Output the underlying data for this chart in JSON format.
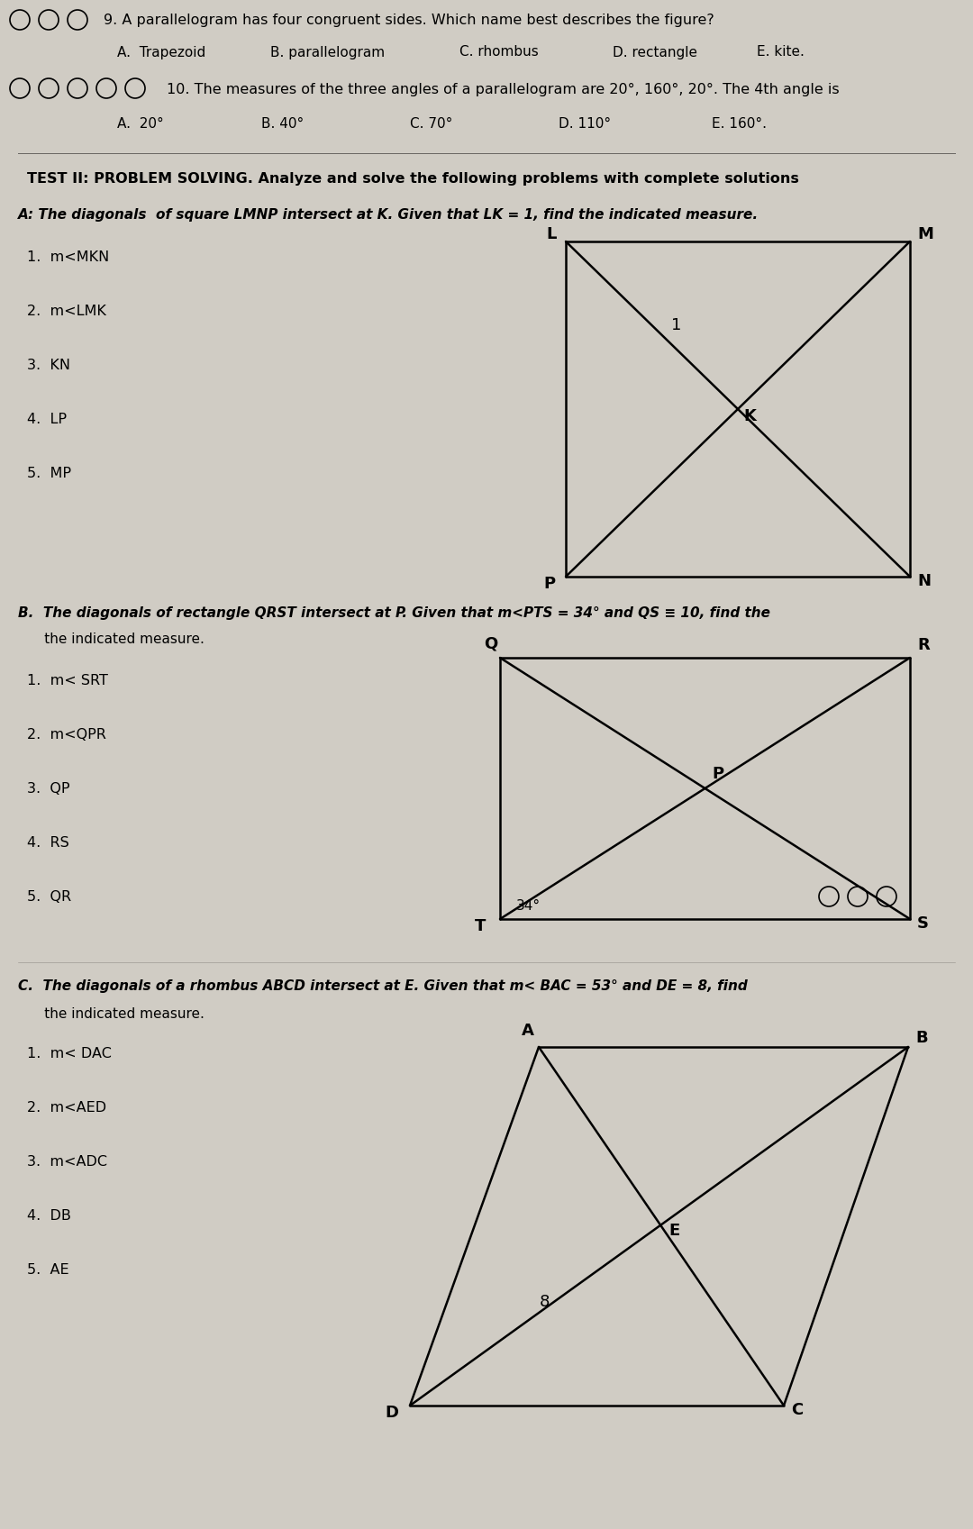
{
  "bg_color": "#d0ccc4",
  "title_q9": "9. A parallelogram has four congruent sides. Which name best describes the figure?",
  "q9_options": [
    "A.  Trapezoid",
    "B. parallelogram",
    "C. rhombus",
    "D. rectangle",
    "E. kite."
  ],
  "q9_circles": 3,
  "title_q10": "10. The measures of the three angles of a parallelogram are 20°, 160°, 20°. The 4th angle is",
  "q10_options": [
    "A.  20°",
    "B. 40°",
    "C. 70°",
    "D. 110°",
    "E. 160°."
  ],
  "q10_circles": 5,
  "test2_header": "TEST II: PROBLEM SOLVING. Analyze and solve the following problems with complete solutions",
  "partA_header": "A: The diagonals  of square LMNP intersect at K. Given that LK = 1, find the indicated measure.",
  "partA_items": [
    "1.  m<MKN",
    "2.  m<LMK",
    "3.  KN",
    "4.  LP",
    "5.  MP"
  ],
  "partB_header": "B.  The diagonals of rectangle QRST intersect at P. Given that m<PTS = 34° and QS ≡ 10, find the",
  "partB_header2": "      the indicated measure.",
  "partB_items": [
    "1.  m< SRT",
    "2.  m<QPR",
    "3.  QP",
    "4.  RS",
    "5.  QR"
  ],
  "partC_header": "C.  The diagonals of a rhombus ABCD intersect at E. Given that m< BAC = 53° and DE = 8, find",
  "partC_header2": "      the indicated measure.",
  "partC_items": [
    "1.  m< DAC",
    "2.  m<AED",
    "3.  m<ADC",
    "4.  DB",
    "5.  AE"
  ]
}
